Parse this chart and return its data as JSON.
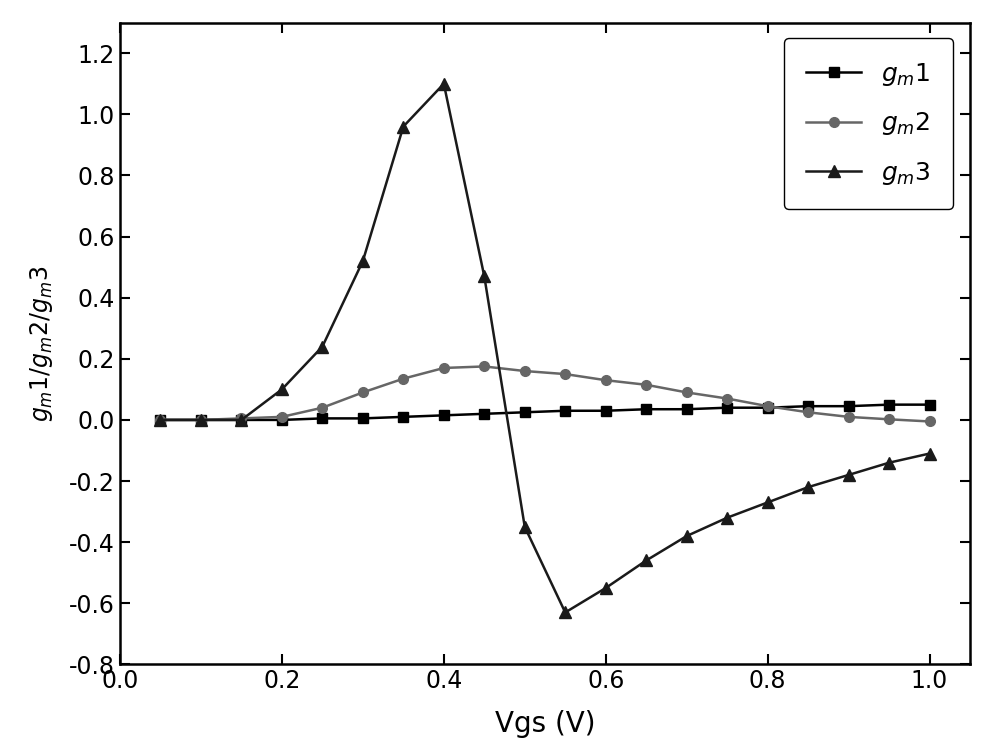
{
  "gm1_x": [
    0.05,
    0.1,
    0.15,
    0.2,
    0.25,
    0.3,
    0.35,
    0.4,
    0.45,
    0.5,
    0.55,
    0.6,
    0.65,
    0.7,
    0.75,
    0.8,
    0.85,
    0.9,
    0.95,
    1.0
  ],
  "gm1_y": [
    0.0,
    0.0,
    0.0,
    0.0,
    0.005,
    0.005,
    0.01,
    0.015,
    0.02,
    0.025,
    0.03,
    0.03,
    0.035,
    0.035,
    0.04,
    0.04,
    0.045,
    0.045,
    0.05,
    0.05
  ],
  "gm2_x": [
    0.05,
    0.1,
    0.15,
    0.2,
    0.25,
    0.3,
    0.35,
    0.4,
    0.45,
    0.5,
    0.55,
    0.6,
    0.65,
    0.7,
    0.75,
    0.8,
    0.85,
    0.9,
    0.95,
    1.0
  ],
  "gm2_y": [
    0.0,
    0.0,
    0.005,
    0.01,
    0.04,
    0.09,
    0.135,
    0.17,
    0.175,
    0.16,
    0.15,
    0.13,
    0.115,
    0.09,
    0.07,
    0.045,
    0.025,
    0.01,
    0.002,
    -0.005
  ],
  "gm3_x": [
    0.05,
    0.1,
    0.15,
    0.2,
    0.25,
    0.3,
    0.35,
    0.4,
    0.45,
    0.5,
    0.55,
    0.6,
    0.65,
    0.7,
    0.75,
    0.8,
    0.85,
    0.9,
    0.95,
    1.0
  ],
  "gm3_y": [
    0.0,
    0.0,
    0.0,
    0.1,
    0.24,
    0.52,
    0.96,
    1.1,
    0.47,
    -0.35,
    -0.63,
    -0.55,
    -0.46,
    -0.38,
    -0.32,
    -0.27,
    -0.22,
    -0.18,
    -0.14,
    -0.11
  ],
  "gm1_color": "#000000",
  "gm2_color": "#666666",
  "gm3_color": "#1a1a1a",
  "xlabel": "Vgs (V)",
  "xlim": [
    0.0,
    1.05
  ],
  "ylim": [
    -0.8,
    1.3
  ],
  "xticks": [
    0.0,
    0.2,
    0.4,
    0.6,
    0.8,
    1.0
  ],
  "yticks": [
    -0.8,
    -0.6,
    -0.4,
    -0.2,
    0.0,
    0.2,
    0.4,
    0.6,
    0.8,
    1.0,
    1.2
  ],
  "fig_width": 10.0,
  "fig_height": 7.55,
  "dpi": 100
}
